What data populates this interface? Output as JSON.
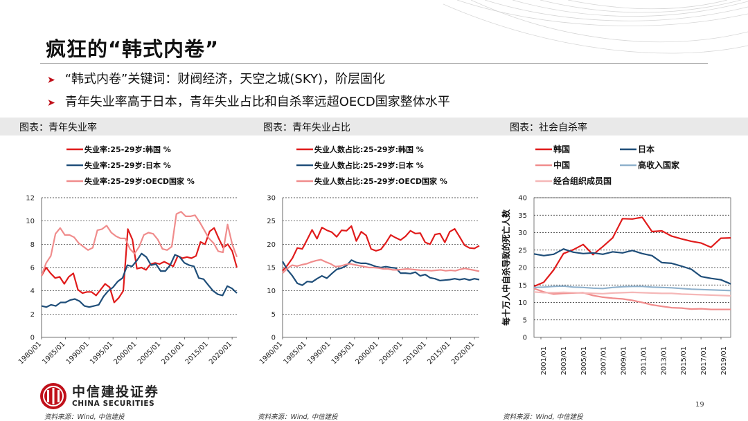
{
  "slide": {
    "title": "疯狂的“韩式内卷”",
    "bullets": [
      "“韩式内卷”关键词：财阀经济，天空之城(SKY)，阶层固化",
      "青年失业率高于日本，青年失业占比和自杀率远超OECD国家整体水平"
    ],
    "captions": [
      "图表：青年失业率",
      "图表：青年失业占比",
      "图表：社会自杀率"
    ],
    "sources": [
      "资料来源：Wind, 中信建投",
      "资料来源：Wind, 中信建投",
      "资料来源：Wind, 中信建投"
    ],
    "page_number": "19",
    "logo": {
      "cn": "中信建投证券",
      "en": "CHINA SECURITIES"
    },
    "colors": {
      "red": "#e01b1b",
      "navy": "#1f4e79",
      "pink": "#f08c8c",
      "lightblue": "#8fb1cc",
      "lightpink": "#f5b7b7",
      "accent": "#c0101a"
    }
  },
  "chart_data": [
    {
      "type": "line",
      "title": "图表：青年失业率",
      "ylim": [
        0,
        12
      ],
      "yticks": [
        "0",
        "2",
        "4",
        "6",
        "8",
        "10",
        "12"
      ],
      "x_start": 1980,
      "x_end": 2021,
      "xtick_labels": [
        "1980/01",
        "1985/01",
        "1990/01",
        "1995/01",
        "2000/01",
        "2005/01",
        "2010/01",
        "2015/01",
        "2020/01"
      ],
      "series": [
        {
          "name": "失业率:25-29岁:韩国 %",
          "color": "#e01b1b",
          "values": [
            5.3,
            6.0,
            5.5,
            5.1,
            5.2,
            4.6,
            5.2,
            5.5,
            4.1,
            3.8,
            3.9,
            3.9,
            3.6,
            4.1,
            4.6,
            4.3,
            3.0,
            3.4,
            4.0,
            9.3,
            8.4,
            5.9,
            6.0,
            5.8,
            6.3,
            6.4,
            6.3,
            6.5,
            6.3,
            6.1,
            7.0,
            6.8,
            6.9,
            6.8,
            7.0,
            8.2,
            8.0,
            9.1,
            9.4,
            8.5,
            7.7,
            8.0,
            7.4,
            6.0
          ]
        },
        {
          "name": "失业率:25-29岁:日本 %",
          "color": "#1f4e79",
          "values": [
            2.7,
            2.6,
            2.8,
            2.7,
            3.0,
            3.0,
            3.2,
            3.3,
            3.1,
            2.7,
            2.6,
            2.7,
            2.8,
            3.5,
            4.0,
            4.3,
            4.8,
            5.1,
            6.2,
            6.1,
            6.6,
            7.2,
            6.9,
            6.2,
            6.3,
            5.7,
            5.7,
            6.2,
            7.1,
            6.9,
            6.4,
            6.2,
            6.1,
            5.1,
            5.0,
            4.5,
            4.0,
            3.7,
            3.6,
            4.4,
            4.2,
            3.8
          ]
        },
        {
          "name": "失业率:25-29岁:OECD国家 %",
          "color": "#f08c8c",
          "values": [
            5.3,
            6.4,
            7.0,
            8.9,
            9.4,
            8.8,
            8.8,
            8.6,
            8.1,
            7.8,
            7.5,
            7.7,
            9.2,
            9.3,
            9.6,
            9.0,
            8.7,
            8.5,
            8.5,
            7.6,
            7.2,
            7.8,
            8.8,
            9.0,
            8.9,
            8.4,
            7.6,
            7.5,
            7.8,
            10.6,
            10.8,
            10.4,
            10.4,
            10.5,
            9.9,
            9.2,
            8.5,
            8.1,
            7.4,
            7.3,
            9.7,
            8.0,
            6.9
          ]
        }
      ],
      "legend": "top"
    },
    {
      "type": "line",
      "title": "图表：青年失业占比",
      "ylim": [
        0,
        30
      ],
      "yticks": [
        "0",
        "5",
        "10",
        "15",
        "20",
        "25",
        "30"
      ],
      "x_start": 1980,
      "x_end": 2021,
      "xtick_labels": [
        "1980/01",
        "1985/01",
        "1990/01",
        "1995/01",
        "2000/01",
        "2005/01",
        "2010/01",
        "2015/01",
        "2020/01"
      ],
      "series": [
        {
          "name": "失业人数占比:25-29岁:韩国 %",
          "color": "#e01b1b",
          "values": [
            14.3,
            15.5,
            17.0,
            19.2,
            19.0,
            21.0,
            23.1,
            21.2,
            23.6,
            23.0,
            22.6,
            21.6,
            23.0,
            22.9,
            23.9,
            20.7,
            22.7,
            21.9,
            19.0,
            18.6,
            18.9,
            20.3,
            22.0,
            21.4,
            20.9,
            21.7,
            22.9,
            22.3,
            22.4,
            20.4,
            20.0,
            22.1,
            22.3,
            20.4,
            22.7,
            23.3,
            21.6,
            19.8,
            19.2,
            19.1,
            19.7
          ]
        },
        {
          "name": "失业人数占比:25-29岁:日本 %",
          "color": "#1f4e79",
          "values": [
            16.3,
            14.5,
            13.2,
            11.6,
            11.2,
            12.0,
            11.9,
            12.6,
            13.2,
            12.7,
            13.7,
            14.6,
            14.9,
            15.4,
            16.6,
            16.1,
            15.9,
            15.9,
            15.6,
            15.2,
            15.0,
            15.2,
            15.0,
            14.9,
            13.8,
            13.8,
            13.7,
            14.0,
            13.2,
            13.5,
            12.8,
            12.6,
            12.2,
            12.3,
            12.4,
            12.6,
            12.4,
            12.6,
            12.3,
            12.6,
            12.4
          ]
        },
        {
          "name": "失业人数占比:25-29岁:OECD国家 %",
          "color": "#f08c8c",
          "values": [
            13.8,
            14.8,
            15.5,
            15.3,
            15.6,
            15.8,
            16.2,
            16.5,
            16.7,
            16.2,
            15.8,
            15.2,
            15.3,
            15.6,
            15.8,
            15.6,
            15.4,
            15.2,
            15.0,
            15.0,
            14.9,
            14.7,
            14.7,
            14.5,
            14.5,
            14.6,
            14.7,
            14.6,
            14.5,
            14.4,
            14.4,
            14.3,
            14.4,
            14.5,
            14.3,
            14.4,
            14.3,
            14.6,
            14.8,
            14.6,
            14.4,
            14.2
          ]
        }
      ],
      "legend": "top"
    },
    {
      "type": "line",
      "title": "图表：社会自杀率",
      "ylabel": "每十万人中自杀导致的死亡人数",
      "ylim": [
        0,
        40
      ],
      "yticks": [
        "0",
        "5",
        "10",
        "15",
        "20",
        "25",
        "30",
        "35",
        "40"
      ],
      "x_start": 2000,
      "x_end": 2020,
      "xtick_labels": [
        "2001/01",
        "2003/01",
        "2005/01",
        "2007/01",
        "2009/01",
        "2011/01",
        "2013/01",
        "2015/01",
        "2017/01",
        "2019/01"
      ],
      "series": [
        {
          "name": "韩国",
          "color": "#e01b1b",
          "values": [
            14.6,
            15.8,
            19.3,
            24.0,
            25.1,
            26.6,
            23.7,
            26.0,
            28.5,
            34.0,
            33.9,
            34.4,
            30.3,
            30.5,
            29.0,
            28.2,
            27.5,
            27.0,
            25.8,
            28.4,
            28.5
          ]
        },
        {
          "name": "日本",
          "color": "#1f4e79",
          "values": [
            23.9,
            23.4,
            23.8,
            25.3,
            24.4,
            24.0,
            24.2,
            23.8,
            24.5,
            24.2,
            24.9,
            24.0,
            23.4,
            21.4,
            21.2,
            20.4,
            19.5,
            17.4,
            16.9,
            16.5,
            15.3
          ]
        },
        {
          "name": "中国",
          "color": "#f08c8c",
          "values": [
            14.0,
            13.0,
            12.4,
            12.6,
            12.7,
            12.8,
            12.0,
            11.5,
            11.2,
            11.0,
            10.6,
            10.0,
            9.3,
            8.9,
            8.5,
            8.4,
            8.1,
            8.2,
            8.0,
            8.0,
            8.0
          ]
        },
        {
          "name": "高收入国家",
          "color": "#8fb1cc",
          "values": [
            14.3,
            14.4,
            14.6,
            14.7,
            14.4,
            14.3,
            14.1,
            14.0,
            14.3,
            14.5,
            14.6,
            14.6,
            14.4,
            14.3,
            14.2,
            14.0,
            13.8,
            13.7,
            13.6,
            13.5,
            13.4
          ]
        },
        {
          "name": "经合组织成员国",
          "color": "#f5b7b7",
          "values": [
            13.0,
            12.8,
            12.8,
            12.9,
            12.8,
            12.7,
            12.6,
            12.5,
            12.7,
            12.8,
            12.9,
            12.8,
            12.7,
            12.6,
            12.6,
            12.4,
            12.3,
            12.2,
            12.1,
            12.0,
            11.9
          ]
        }
      ],
      "legend": "top, two columns"
    }
  ]
}
